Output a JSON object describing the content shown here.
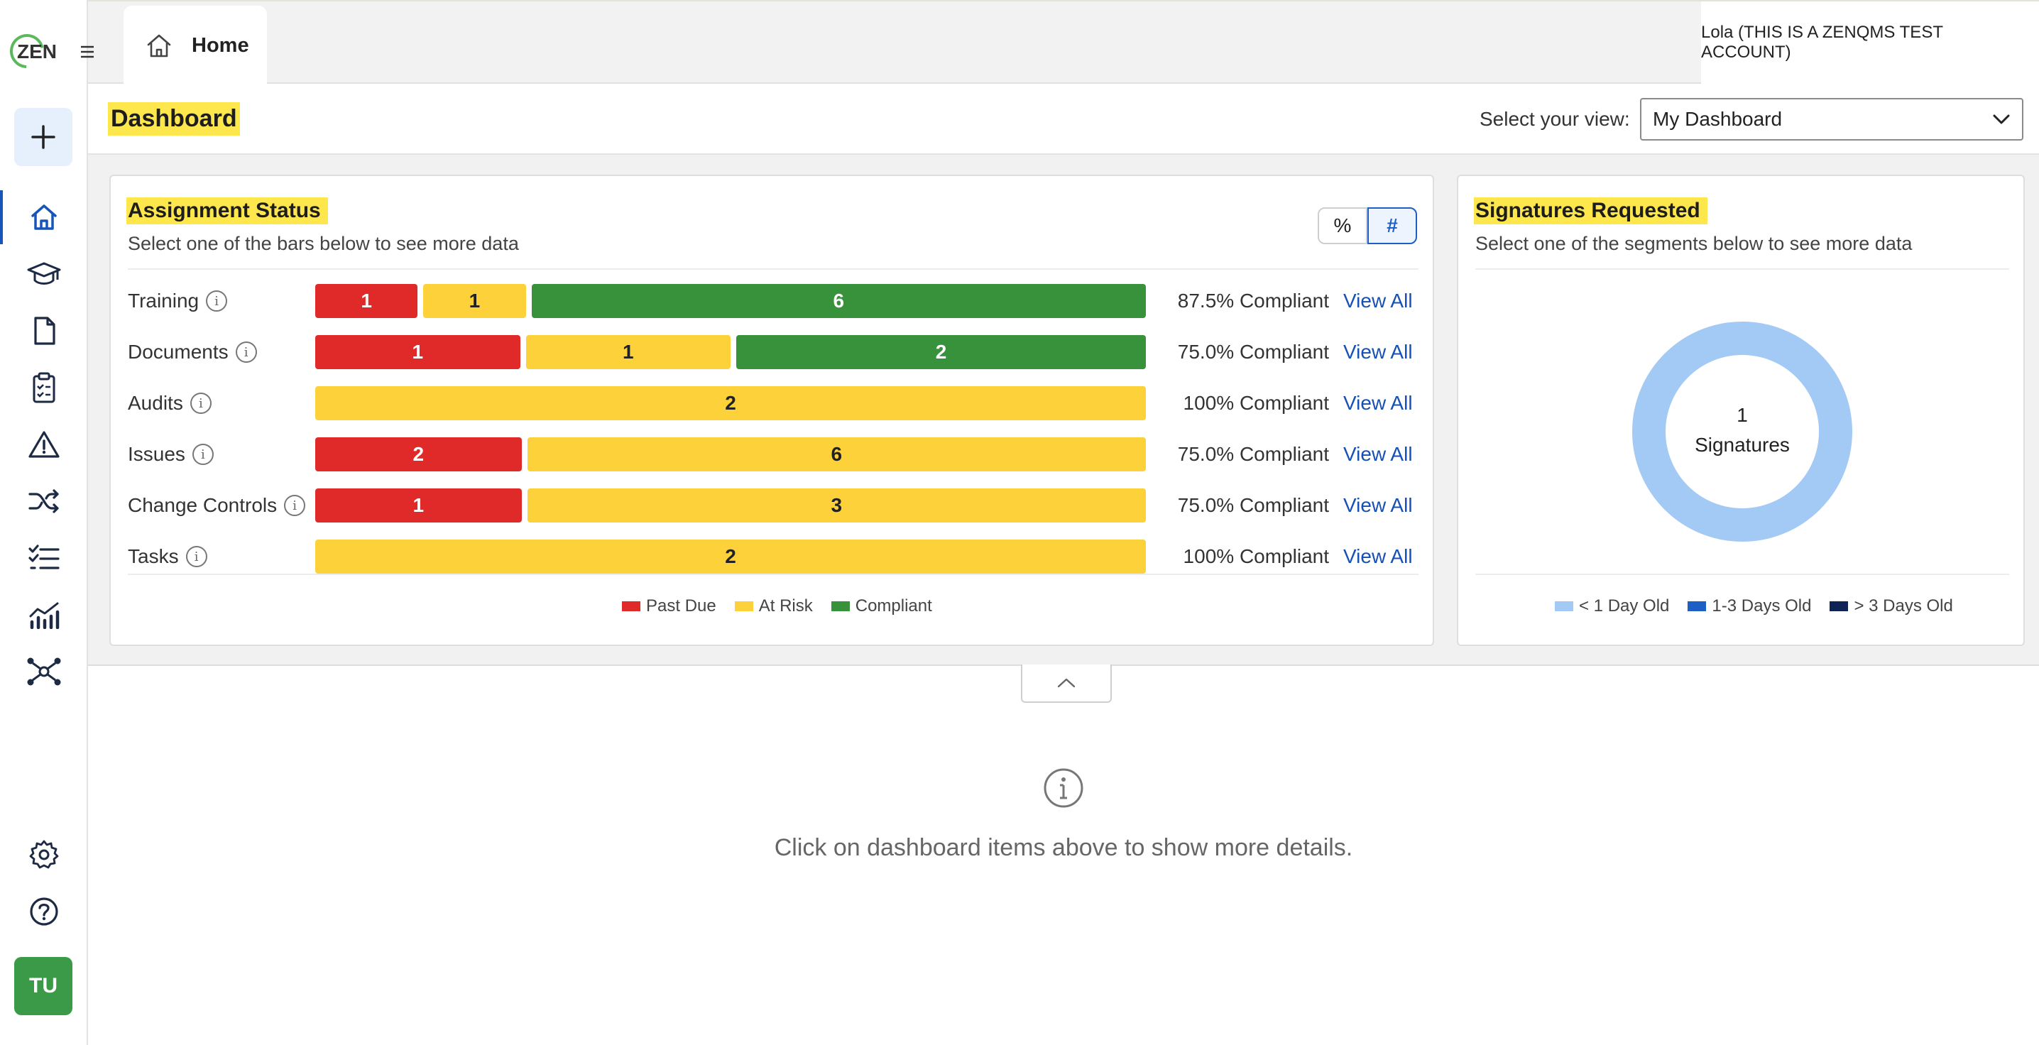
{
  "app": {
    "logo_text": "ZEN",
    "account": "Lola (THIS IS A ZENQMS TEST ACCOUNT)",
    "tabs": [
      {
        "label": "Home"
      }
    ]
  },
  "sidebar": {
    "avatar_initials": "TU",
    "items": [
      {
        "name": "home",
        "icon": "home-icon"
      },
      {
        "name": "training",
        "icon": "graduation-cap-icon"
      },
      {
        "name": "documents",
        "icon": "document-icon"
      },
      {
        "name": "audits",
        "icon": "clipboard-checklist-icon"
      },
      {
        "name": "issues",
        "icon": "warning-icon"
      },
      {
        "name": "change-controls",
        "icon": "shuffle-icon"
      },
      {
        "name": "tasks",
        "icon": "checklist-icon"
      },
      {
        "name": "reports",
        "icon": "analytics-chart-icon"
      },
      {
        "name": "network",
        "icon": "hub-network-icon"
      },
      {
        "name": "settings",
        "icon": "gear-icon"
      },
      {
        "name": "help",
        "icon": "question-circle-icon"
      }
    ]
  },
  "header": {
    "title": "Dashboard",
    "view_label": "Select your view:",
    "view_selected": "My Dashboard"
  },
  "assignment_status": {
    "title": "Assignment Status",
    "subtitle": "Select one of the bars below to see more data",
    "toggle": {
      "percent": "%",
      "count": "#",
      "active": "#"
    },
    "view_all_label": "View All",
    "rows": [
      {
        "label": "Training",
        "past_due": 1,
        "at_risk": 1,
        "compliant": 6,
        "compliance": "87.5% Compliant"
      },
      {
        "label": "Documents",
        "past_due": 1,
        "at_risk": 1,
        "compliant": 2,
        "compliance": "75.0% Compliant"
      },
      {
        "label": "Audits",
        "past_due": 0,
        "at_risk": 2,
        "compliant": 0,
        "compliance": "100% Compliant"
      },
      {
        "label": "Issues",
        "past_due": 2,
        "at_risk": 6,
        "compliant": 0,
        "compliance": "75.0% Compliant"
      },
      {
        "label": "Change Controls",
        "past_due": 1,
        "at_risk": 3,
        "compliant": 0,
        "compliance": "75.0% Compliant"
      },
      {
        "label": "Tasks",
        "past_due": 0,
        "at_risk": 2,
        "compliant": 0,
        "compliance": "100% Compliant"
      }
    ],
    "legend": [
      {
        "label": "Past Due",
        "color": "#e02a2a"
      },
      {
        "label": "At Risk",
        "color": "#fdd13a"
      },
      {
        "label": "Compliant",
        "color": "#38923c"
      }
    ]
  },
  "signatures": {
    "title": "Signatures Requested",
    "subtitle": "Select one of the segments below to see more data",
    "center_count": "1",
    "center_label": "Signatures",
    "legend": [
      {
        "label": "< 1 Day Old",
        "color": "#a3c9f5",
        "value": 1
      },
      {
        "label": "1-3 Days Old",
        "color": "#1d5fc5",
        "value": 0
      },
      {
        "label": "> 3 Days Old",
        "color": "#0f2456",
        "value": 0
      }
    ]
  },
  "details": {
    "message": "Click on dashboard items above to show more details."
  },
  "colors": {
    "accent": "#1756b8",
    "highlight": "#fde74c"
  }
}
